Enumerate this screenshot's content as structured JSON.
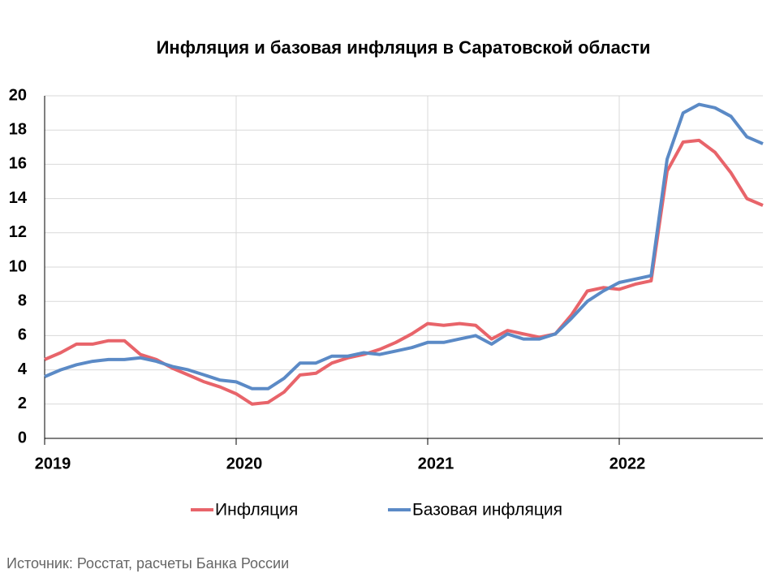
{
  "chart_data": {
    "type": "line",
    "title": "Инфляция и базовая инфляция в Саратовской области",
    "source": "Источник: Росстат, расчеты Банка России",
    "categories": [
      "2019",
      null,
      null,
      null,
      null,
      null,
      null,
      null,
      null,
      null,
      null,
      null,
      "2020",
      null,
      null,
      null,
      null,
      null,
      null,
      null,
      null,
      null,
      null,
      null,
      "2021",
      null,
      null,
      null,
      null,
      null,
      null,
      null,
      null,
      null,
      null,
      null,
      "2022",
      null,
      null,
      null,
      null,
      null,
      null,
      null,
      null,
      null
    ],
    "series": [
      {
        "name": "Инфляция",
        "color": "#e8646a",
        "values": [
          4.6,
          5.0,
          5.5,
          5.5,
          5.7,
          5.7,
          4.9,
          4.6,
          4.1,
          3.7,
          3.3,
          3.0,
          2.6,
          2.0,
          2.1,
          2.7,
          3.7,
          3.8,
          4.4,
          4.7,
          4.9,
          5.2,
          5.6,
          6.1,
          6.7,
          6.6,
          6.7,
          6.6,
          5.8,
          6.3,
          6.1,
          5.9,
          6.1,
          7.2,
          8.6,
          8.8,
          8.7,
          9.0,
          9.2,
          15.6,
          17.3,
          17.4,
          16.7,
          15.5,
          14.0,
          13.6
        ]
      },
      {
        "name": "Базовая инфляция",
        "color": "#5b8ac6",
        "values": [
          3.6,
          4.0,
          4.3,
          4.5,
          4.6,
          4.6,
          4.7,
          4.5,
          4.2,
          4.0,
          3.7,
          3.4,
          3.3,
          2.9,
          2.9,
          3.5,
          4.4,
          4.4,
          4.8,
          4.8,
          5.0,
          4.9,
          5.1,
          5.3,
          5.6,
          5.6,
          5.8,
          6.0,
          5.5,
          6.1,
          5.8,
          5.8,
          6.1,
          7.0,
          8.0,
          8.6,
          9.1,
          9.3,
          9.5,
          16.3,
          19.0,
          19.5,
          19.3,
          18.8,
          17.6,
          17.2
        ]
      }
    ],
    "ylim": [
      0,
      20
    ],
    "yticks": [
      0,
      2,
      4,
      6,
      8,
      10,
      12,
      14,
      16,
      18,
      20
    ],
    "grid": true
  }
}
